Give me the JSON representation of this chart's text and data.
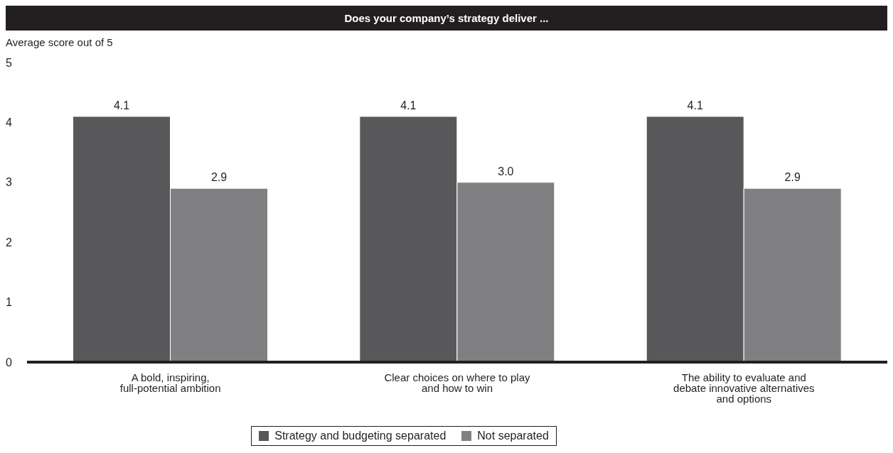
{
  "chart_data": {
    "type": "bar",
    "title": "Does your company’s strategy deliver ...",
    "ylabel": "Average score out of 5",
    "categories": [
      "A bold, inspiring, full-potential ambition",
      "Clear choices on where to play and how to win",
      "The ability to evaluate and debate innovative alternatives and options"
    ],
    "series": [
      {
        "name": "Strategy and budgeting separated",
        "color": "#58585a",
        "values": [
          4.1,
          4.1,
          4.1
        ],
        "value_labels": [
          "4.1",
          "4.1",
          "4.1"
        ]
      },
      {
        "name": "Not separated",
        "color": "#808083",
        "values": [
          2.9,
          3.0,
          2.9
        ],
        "value_labels": [
          "2.9",
          "3.0",
          "2.9"
        ]
      }
    ],
    "ylim": [
      0,
      5
    ],
    "yticks": [
      0,
      1,
      2,
      3,
      4,
      5
    ],
    "grid": false,
    "legend": "bottom"
  }
}
